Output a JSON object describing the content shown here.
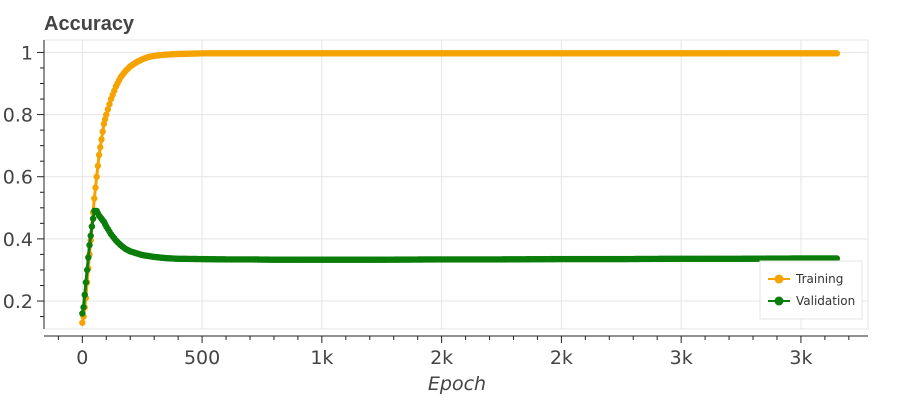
{
  "chart_data": {
    "type": "line",
    "title": "Accuracy",
    "xlabel": "Epoch",
    "ylabel": "",
    "xlim": [
      -160,
      3280
    ],
    "ylim": [
      0.11,
      1.04
    ],
    "x_ticks": [
      {
        "value": 0,
        "label": "0"
      },
      {
        "value": 500,
        "label": "500"
      },
      {
        "value": 1000,
        "label": "1k"
      },
      {
        "value": 1500,
        "label": "2k"
      },
      {
        "value": 2000,
        "label": "2k"
      },
      {
        "value": 2500,
        "label": "3k"
      },
      {
        "value": 3000,
        "label": "3k"
      }
    ],
    "y_ticks": [
      {
        "value": 0.2,
        "label": "0.2"
      },
      {
        "value": 0.4,
        "label": "0.4"
      },
      {
        "value": 0.6,
        "label": "0.6"
      },
      {
        "value": 0.8,
        "label": "0.8"
      },
      {
        "value": 1.0,
        "label": "1"
      }
    ],
    "grid": true,
    "legend_position": "bottom-right",
    "series": [
      {
        "name": "Training",
        "color": "#f5a300",
        "x": [
          0,
          5,
          10,
          15,
          20,
          30,
          40,
          50,
          60,
          70,
          80,
          90,
          100,
          120,
          140,
          160,
          180,
          200,
          225,
          250,
          275,
          300,
          350,
          400,
          450,
          500,
          600,
          700,
          800,
          900,
          1000,
          1250,
          1500,
          1750,
          2000,
          2250,
          2500,
          2750,
          3000,
          3150
        ],
        "values": [
          0.13,
          0.15,
          0.18,
          0.21,
          0.26,
          0.35,
          0.44,
          0.53,
          0.6,
          0.67,
          0.72,
          0.77,
          0.8,
          0.85,
          0.89,
          0.92,
          0.94,
          0.955,
          0.968,
          0.978,
          0.985,
          0.989,
          0.993,
          0.995,
          0.996,
          0.997,
          0.997,
          0.997,
          0.997,
          0.997,
          0.997,
          0.997,
          0.997,
          0.997,
          0.997,
          0.997,
          0.997,
          0.997,
          0.997,
          0.997
        ]
      },
      {
        "name": "Validation",
        "color": "#0a7d0a",
        "x": [
          0,
          5,
          10,
          15,
          20,
          25,
          30,
          40,
          50,
          60,
          70,
          80,
          90,
          100,
          120,
          140,
          160,
          180,
          200,
          250,
          300,
          350,
          400,
          500,
          600,
          700,
          800,
          900,
          1000,
          1250,
          1500,
          1750,
          2000,
          2250,
          2500,
          2750,
          3000,
          3150
        ],
        "values": [
          0.16,
          0.18,
          0.22,
          0.26,
          0.3,
          0.34,
          0.38,
          0.44,
          0.49,
          0.49,
          0.475,
          0.465,
          0.455,
          0.44,
          0.415,
          0.395,
          0.38,
          0.368,
          0.36,
          0.348,
          0.342,
          0.338,
          0.336,
          0.335,
          0.334,
          0.334,
          0.333,
          0.333,
          0.333,
          0.333,
          0.334,
          0.334,
          0.335,
          0.335,
          0.336,
          0.336,
          0.337,
          0.337
        ]
      }
    ]
  }
}
